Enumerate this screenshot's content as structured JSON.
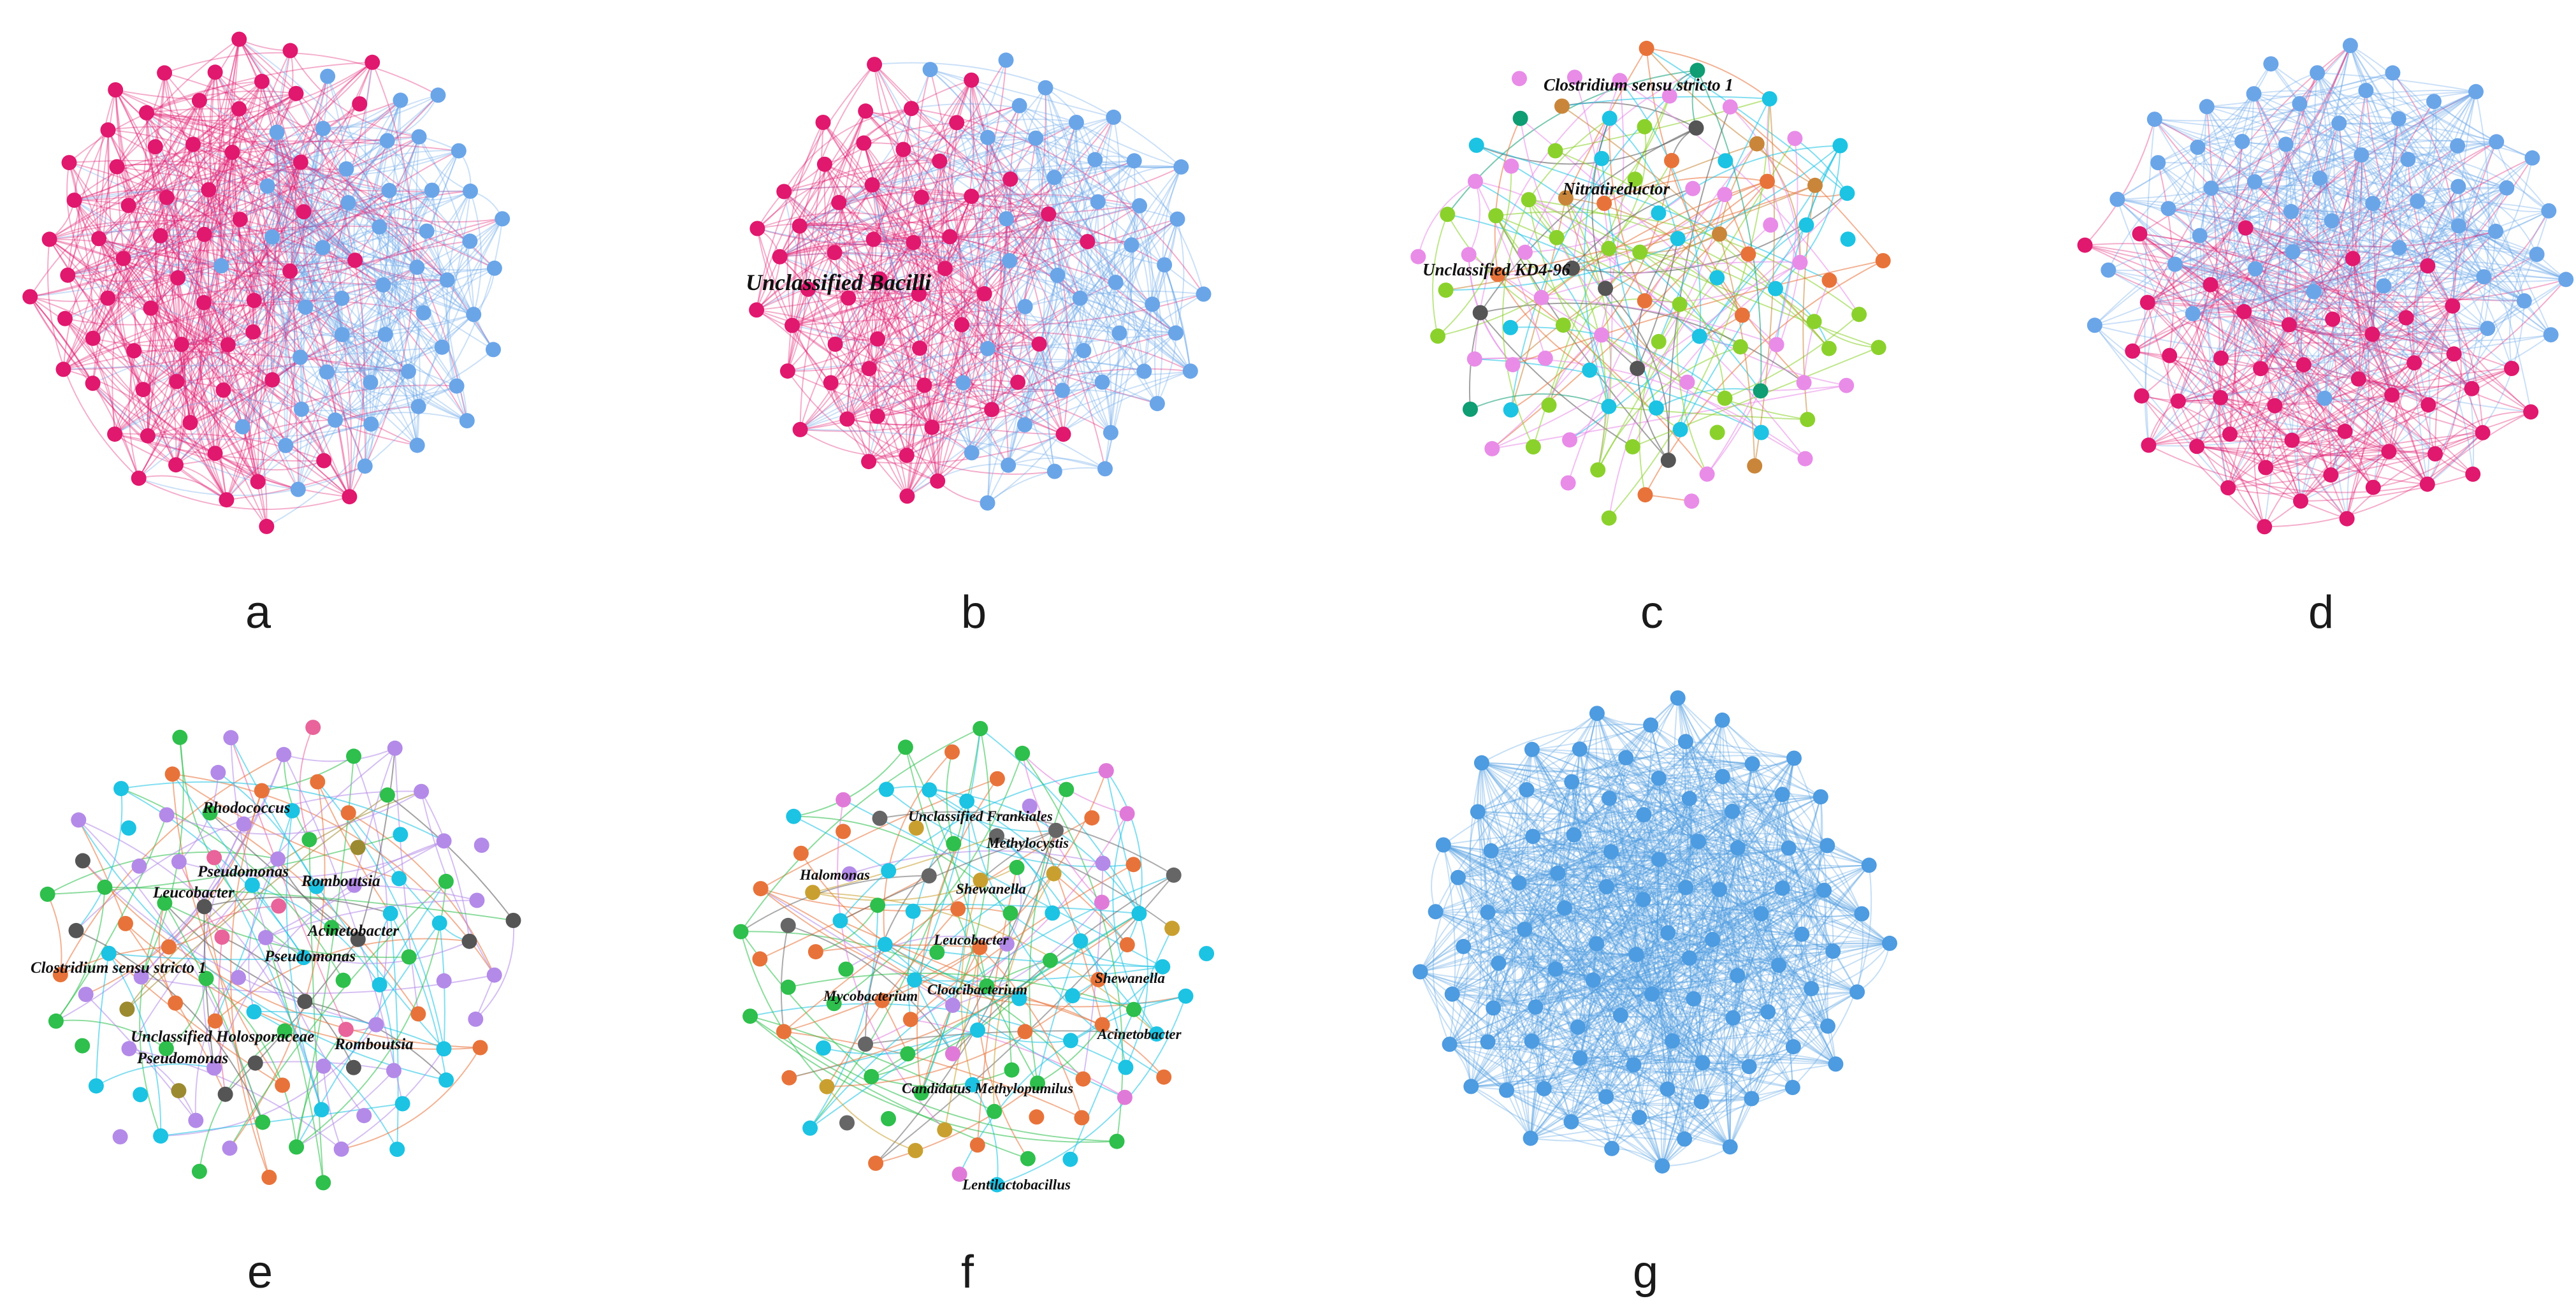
{
  "panels": [
    {
      "letter": "a",
      "palette": [
        "#e0186e",
        "#6aa5e8"
      ],
      "nodes": 110,
      "edges": 620,
      "edgeOpacity": 0.35,
      "mix": [
        0.62,
        0.38
      ],
      "labels": []
    },
    {
      "letter": "b",
      "palette": [
        "#e0186e",
        "#6aa5e8"
      ],
      "nodes": 95,
      "edges": 520,
      "edgeOpacity": 0.35,
      "mix": [
        0.58,
        0.42
      ],
      "labels": [
        {
          "text": "Unclassified Bacilli",
          "size": 34
        }
      ]
    },
    {
      "letter": "c",
      "palette": [
        "#8bd12c",
        "#e88ce8",
        "#1cc3e3",
        "#e8733a",
        "#555555",
        "#0f9d73",
        "#c9863a"
      ],
      "nodes": 105,
      "edges": 160,
      "edgeOpacity": 0.55,
      "mix": [
        0.3,
        0.25,
        0.2,
        0.1,
        0.07,
        0.04,
        0.04
      ],
      "labels": [
        {
          "text": "Clostridium sensu stricto 1",
          "size": 26
        },
        {
          "text": "Nitratireductor",
          "size": 26
        },
        {
          "text": "Unclassified KD4-96",
          "size": 26
        }
      ]
    },
    {
      "letter": "d",
      "palette": [
        "#e0186e",
        "#6aa5e8"
      ],
      "nodes": 100,
      "edges": 560,
      "edgeOpacity": 0.35,
      "mix": [
        0.55,
        0.45
      ],
      "labels": []
    },
    {
      "letter": "e",
      "palette": [
        "#b38ae8",
        "#1cc3e3",
        "#2ebf4c",
        "#e8733a",
        "#555555",
        "#e8649a",
        "#9c8a30"
      ],
      "nodes": 105,
      "edges": 130,
      "edgeOpacity": 0.55,
      "mix": [
        0.28,
        0.24,
        0.18,
        0.12,
        0.08,
        0.06,
        0.04
      ],
      "labels": [
        {
          "text": "Rhodococcus",
          "size": 25
        },
        {
          "text": "Pseudomonas",
          "size": 25
        },
        {
          "text": "Romboutsia",
          "size": 25
        },
        {
          "text": "Leucobacter",
          "size": 25
        },
        {
          "text": "Acinetobacter",
          "size": 25
        },
        {
          "text": "Pseudomonas",
          "size": 25
        },
        {
          "text": "Clostridium sensu stricto 1",
          "size": 25
        },
        {
          "text": "Unclassified Holosporaceae",
          "size": 25
        },
        {
          "text": "Romboutsia",
          "size": 25
        },
        {
          "text": "Pseudomonas",
          "size": 25
        }
      ]
    },
    {
      "letter": "f",
      "palette": [
        "#1cc3e3",
        "#e8733a",
        "#2ebf4c",
        "#e07ad8",
        "#c9a030",
        "#666666",
        "#b38ae8"
      ],
      "nodes": 105,
      "edges": 130,
      "edgeOpacity": 0.55,
      "mix": [
        0.28,
        0.2,
        0.16,
        0.12,
        0.1,
        0.09,
        0.05
      ],
      "labels": [
        {
          "text": "Unclassified Frankiales",
          "size": 23
        },
        {
          "text": "Methylocystis",
          "size": 23
        },
        {
          "text": "Halomonas",
          "size": 23
        },
        {
          "text": "Shewanella",
          "size": 23
        },
        {
          "text": "Leucobacter",
          "size": 23
        },
        {
          "text": "Shewanella",
          "size": 23
        },
        {
          "text": "Mycobacterium",
          "size": 23
        },
        {
          "text": "Cloacibacterium",
          "size": 23
        },
        {
          "text": "Acinetobacter",
          "size": 23
        },
        {
          "text": "Candidatus Methylopumilus",
          "size": 23
        },
        {
          "text": "Lentilactobacillus",
          "size": 23
        }
      ]
    },
    {
      "letter": "g",
      "palette": [
        "#4d9be0"
      ],
      "nodes": 100,
      "edges": 900,
      "edgeOpacity": 0.32,
      "mix": [
        1.0
      ],
      "labels": []
    }
  ]
}
